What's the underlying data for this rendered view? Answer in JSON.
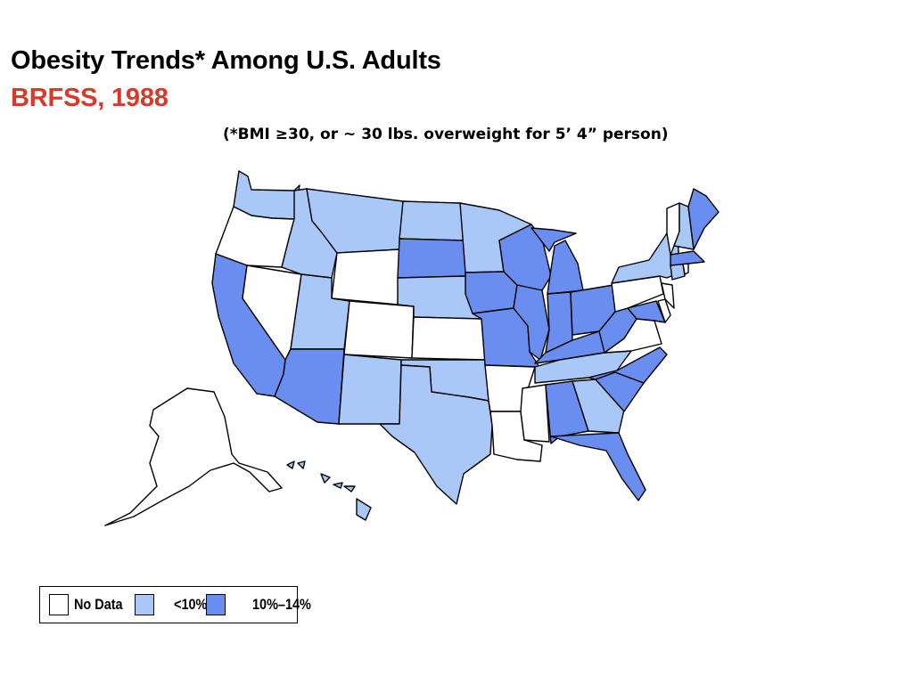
{
  "title": "Obesity Trends* Among U.S. Adults",
  "subtitle": "BRFSS, 1988",
  "note": "(*BMI ≥30, or ~ 30 lbs. overweight for 5’ 4” person)",
  "colors": {
    "no_data": "#ffffff",
    "lt10": "#a9c8f7",
    "p10_14": "#6a8ef0",
    "subtitle": "#d9382a"
  },
  "legend": [
    {
      "key": "no_data",
      "label": "No Data"
    },
    {
      "key": "lt10",
      "label": "<10%"
    },
    {
      "key": "p10_14",
      "label": "10%–14%"
    }
  ],
  "states": {
    "WA": "lt10",
    "OR": "no_data",
    "CA": "p10_14",
    "NV": "no_data",
    "ID": "lt10",
    "MT": "lt10",
    "WY": "no_data",
    "UT": "lt10",
    "CO": "no_data",
    "AZ": "p10_14",
    "NM": "lt10",
    "ND": "lt10",
    "SD": "p10_14",
    "NE": "lt10",
    "KS": "no_data",
    "OK": "lt10",
    "TX": "lt10",
    "MN": "lt10",
    "IA": "p10_14",
    "MO": "p10_14",
    "AR": "no_data",
    "LA": "no_data",
    "WI": "p10_14",
    "IL": "p10_14",
    "MI": "p10_14",
    "IN": "p10_14",
    "OH": "p10_14",
    "KY": "p10_14",
    "TN": "lt10",
    "MS": "no_data",
    "AL": "p10_14",
    "GA": "lt10",
    "FL": "p10_14",
    "SC": "p10_14",
    "NC": "p10_14",
    "VA": "no_data",
    "WV": "p10_14",
    "MD": "p10_14",
    "DE": "no_data",
    "NJ": "no_data",
    "PA": "no_data",
    "NY": "lt10",
    "CT": "lt10",
    "RI": "no_data",
    "MA": "p10_14",
    "VT": "no_data",
    "NH": "lt10",
    "ME": "p10_14",
    "AK": "no_data",
    "HI": "lt10"
  }
}
